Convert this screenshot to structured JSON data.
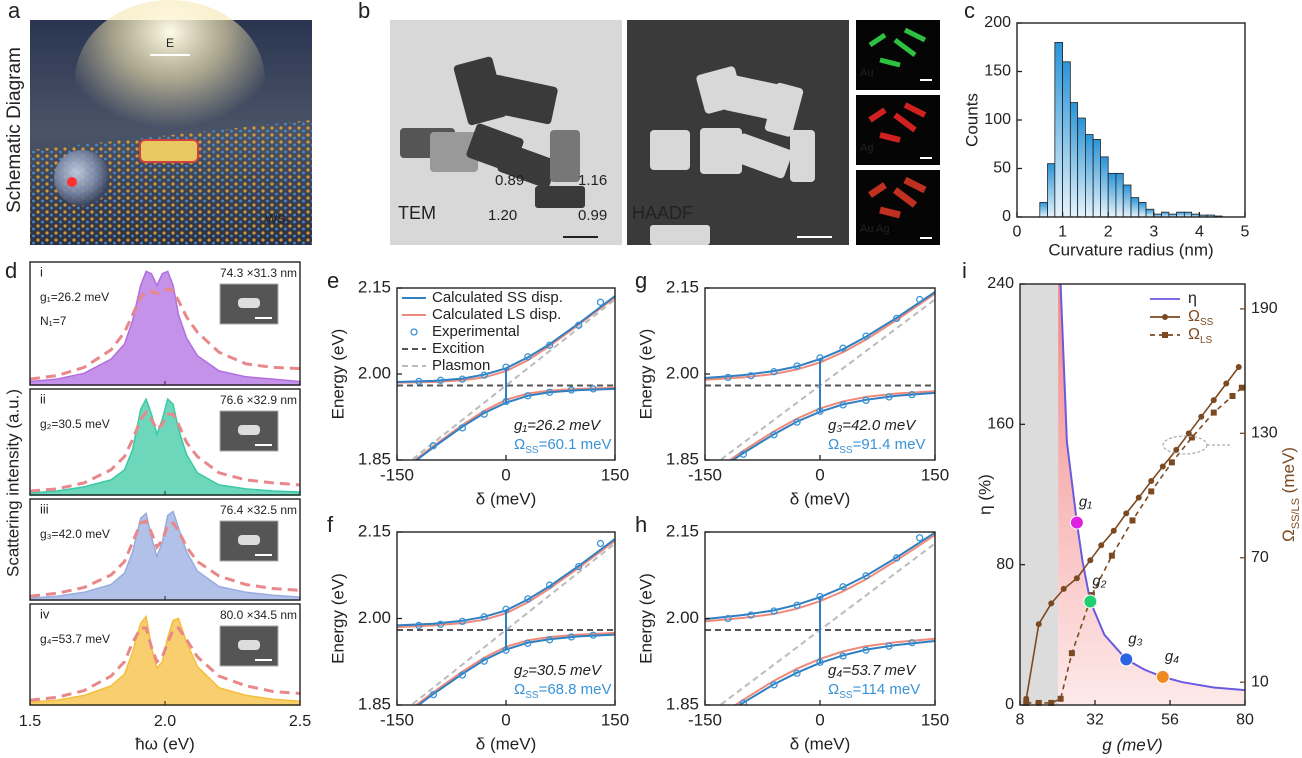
{
  "panels": {
    "a": {
      "letter": "a",
      "title": "Schematic Diagram",
      "field": "E",
      "substrate": "WS₂"
    },
    "b": {
      "letter": "b",
      "tem": "TEM",
      "haadf": "HAADF",
      "ratios": [
        "0.89",
        "1.16",
        "1.20",
        "0.99"
      ],
      "maps": [
        "Au",
        "Ag",
        "Au",
        "Ag"
      ]
    }
  },
  "chart_data": [
    {
      "panel": "c",
      "type": "histogram",
      "xlabel": "Curvature radius (nm)",
      "ylabel": "Counts",
      "color": "#3aa0d8",
      "bins": [
        0.5,
        0.67,
        0.83,
        1.0,
        1.17,
        1.33,
        1.5,
        1.67,
        1.83,
        2.0,
        2.17,
        2.33,
        2.5,
        2.67,
        2.83,
        3.0,
        3.17,
        3.33,
        3.5,
        3.67,
        3.83,
        4.0,
        4.17,
        4.33,
        4.5
      ],
      "values": [
        15,
        55,
        180,
        160,
        118,
        102,
        85,
        80,
        62,
        45,
        45,
        33,
        20,
        15,
        8,
        3,
        5,
        3,
        5,
        5,
        3,
        2,
        2,
        1
      ],
      "xlim": [
        0,
        5
      ],
      "xticks": [
        0,
        1,
        2,
        3,
        4,
        5
      ],
      "ylim": [
        0,
        200
      ],
      "yticks": [
        0,
        50,
        100,
        150,
        200
      ]
    },
    {
      "panel": "d",
      "type": "area",
      "xlabel": "ħω (eV)",
      "ylabel": "Scattering intensity (a.u.)",
      "fit_color": "#e8888a",
      "xlim": [
        1.5,
        2.5
      ],
      "xticks": [
        1.5,
        {
          "value": 2,
          "label": "2.0"
        },
        2.5
      ],
      "ylim": [
        0,
        1.05
      ],
      "x": [
        1.5,
        1.6,
        1.7,
        1.8,
        1.85,
        1.88,
        1.91,
        1.93,
        1.95,
        1.97,
        1.99,
        2.01,
        2.03,
        2.05,
        2.08,
        2.12,
        2.2,
        2.3,
        2.4,
        2.5
      ],
      "subplots": [
        {
          "index": "i",
          "size": "74.3 ×31.3 nm",
          "coupling": "g₁=26.2 meV",
          "count": "N₁=7",
          "color": "#b06ee0",
          "values": [
            0.03,
            0.05,
            0.1,
            0.22,
            0.35,
            0.55,
            0.85,
            0.97,
            0.95,
            0.85,
            0.95,
            0.97,
            0.85,
            0.6,
            0.4,
            0.25,
            0.12,
            0.07,
            0.05,
            0.03
          ],
          "fit": [
            0.05,
            0.08,
            0.15,
            0.3,
            0.45,
            0.6,
            0.75,
            0.8,
            0.8,
            0.78,
            0.8,
            0.82,
            0.8,
            0.72,
            0.58,
            0.45,
            0.28,
            0.18,
            0.15,
            0.14
          ]
        },
        {
          "index": "ii",
          "size": "76.6 ×32.9 nm",
          "coupling": "g₂=30.5 meV",
          "color": "#3cc9a6",
          "values": [
            0.02,
            0.04,
            0.08,
            0.15,
            0.25,
            0.45,
            0.85,
            0.95,
            0.8,
            0.6,
            0.75,
            0.95,
            0.9,
            0.65,
            0.4,
            0.22,
            0.1,
            0.06,
            0.04,
            0.03
          ],
          "fit": [
            0.04,
            0.06,
            0.12,
            0.25,
            0.38,
            0.55,
            0.75,
            0.82,
            0.75,
            0.65,
            0.7,
            0.8,
            0.8,
            0.7,
            0.52,
            0.38,
            0.22,
            0.15,
            0.12,
            0.1
          ]
        },
        {
          "index": "iii",
          "size": "76.4 ×32.5 nm",
          "coupling": "g₃=42.0 meV",
          "color": "#98acdf",
          "values": [
            0.02,
            0.04,
            0.08,
            0.16,
            0.28,
            0.5,
            0.85,
            0.9,
            0.65,
            0.45,
            0.6,
            0.88,
            0.92,
            0.75,
            0.5,
            0.3,
            0.14,
            0.08,
            0.05,
            0.03
          ],
          "fit": [
            0.04,
            0.07,
            0.13,
            0.26,
            0.4,
            0.6,
            0.8,
            0.82,
            0.7,
            0.55,
            0.62,
            0.78,
            0.8,
            0.72,
            0.55,
            0.4,
            0.25,
            0.16,
            0.12,
            0.1
          ]
        },
        {
          "index": "iv",
          "size": "80.0 ×34.5 nm",
          "coupling": "g₄=53.7 meV",
          "color": "#f5be3e",
          "values": [
            0.03,
            0.05,
            0.1,
            0.2,
            0.32,
            0.55,
            0.85,
            0.92,
            0.6,
            0.38,
            0.45,
            0.7,
            0.88,
            0.9,
            0.65,
            0.4,
            0.18,
            0.1,
            0.06,
            0.04
          ],
          "fit": [
            0.05,
            0.08,
            0.15,
            0.3,
            0.45,
            0.65,
            0.8,
            0.8,
            0.6,
            0.45,
            0.5,
            0.65,
            0.78,
            0.8,
            0.68,
            0.5,
            0.3,
            0.2,
            0.14,
            0.12
          ]
        }
      ]
    },
    {
      "panel": "e",
      "type": "line",
      "xlabel": "δ (meV)",
      "ylabel": "Energy (eV)",
      "xlim": [
        -150,
        150
      ],
      "xticks": [
        -150,
        0,
        150
      ],
      "ylim": [
        1.85,
        2.15
      ],
      "yticks": [
        1.85,
        {
          "value": 2,
          "label": "2.00"
        },
        2.15
      ],
      "x": [
        -150,
        -100,
        -60,
        -30,
        0,
        30,
        60,
        100,
        150
      ],
      "coupling": "g₁=26.2 meV",
      "splitting": [
        "Ω",
        "SS",
        "=60.1 meV"
      ],
      "series": [
        {
          "name": "Calculated SS disp.",
          "color": "#2f7fc1",
          "values": [
            1.986,
            1.988,
            1.992,
            1.999,
            2.01,
            2.029,
            2.052,
            2.088,
            2.136
          ],
          "lower": [
            1.824,
            1.872,
            1.908,
            1.932,
            1.95,
            1.962,
            1.968,
            1.972,
            1.974
          ]
        },
        {
          "name": "Calculated LS disp.",
          "color": "#ef8a7a",
          "values": [
            1.985,
            1.986,
            1.989,
            1.994,
            2.005,
            2.024,
            2.049,
            2.086,
            2.134
          ],
          "lower": [
            1.826,
            1.874,
            1.911,
            1.936,
            1.955,
            1.966,
            1.971,
            1.974,
            1.976
          ]
        },
        {
          "name": "Experimental",
          "color": "#3a93d6",
          "x": [
            -120,
            -90,
            -60,
            -30,
            0,
            30,
            60,
            100,
            130,
            -100,
            -60,
            -30,
            0,
            30,
            60,
            90,
            120
          ],
          "values": [
            1.987,
            1.989,
            1.991,
            1.998,
            2.012,
            2.03,
            2.05,
            2.085,
            2.125,
            1.875,
            1.906,
            1.93,
            1.952,
            1.962,
            1.968,
            1.972,
            1.974
          ]
        },
        {
          "name": "Excition",
          "color": "#555555",
          "x": [
            -150,
            150
          ],
          "values": [
            1.98,
            1.98
          ]
        },
        {
          "name": "Plasmon",
          "color": "#bbbbbb",
          "x": [
            -150,
            150
          ],
          "values": [
            1.83,
            2.13
          ]
        }
      ]
    },
    {
      "panel": "f",
      "type": "line",
      "xlabel": "δ (meV)",
      "ylabel": "Energy (eV)",
      "xlim": [
        -150,
        150
      ],
      "xticks": [
        -150,
        0,
        150
      ],
      "ylim": [
        1.85,
        2.15
      ],
      "yticks": [
        1.85,
        {
          "value": 2,
          "label": "2.00"
        },
        2.15
      ],
      "x": [
        -150,
        -100,
        -60,
        -30,
        0,
        30,
        60,
        100,
        150
      ],
      "coupling": "g₂=30.5 meV",
      "splitting": [
        "Ω",
        "SS",
        "=68.8 meV"
      ],
      "series": [
        {
          "color": "#2f7fc1",
          "values": [
            1.988,
            1.991,
            1.996,
            2.003,
            2.014,
            2.033,
            2.056,
            2.091,
            2.138
          ],
          "lower": [
            1.822,
            1.869,
            1.904,
            1.928,
            1.946,
            1.958,
            1.964,
            1.969,
            1.972
          ]
        },
        {
          "color": "#ef8a7a",
          "values": [
            1.985,
            1.988,
            1.992,
            1.998,
            2.009,
            2.028,
            2.052,
            2.088,
            2.135
          ],
          "lower": [
            1.825,
            1.872,
            1.908,
            1.932,
            1.951,
            1.962,
            1.968,
            1.972,
            1.975
          ]
        },
        {
          "color": "#3a93d6",
          "x": [
            -120,
            -90,
            -60,
            -30,
            0,
            30,
            60,
            100,
            130,
            -100,
            -60,
            -30,
            0,
            30,
            60,
            90,
            120
          ],
          "values": [
            1.988,
            1.99,
            1.995,
            2.003,
            2.016,
            2.034,
            2.058,
            2.09,
            2.13,
            1.868,
            1.902,
            1.926,
            1.945,
            1.957,
            1.963,
            1.968,
            1.971
          ]
        },
        {
          "color": "#555555",
          "x": [
            -150,
            150
          ],
          "values": [
            1.98,
            1.98
          ]
        },
        {
          "color": "#bbbbbb",
          "x": [
            -150,
            150
          ],
          "values": [
            1.83,
            2.13
          ]
        }
      ]
    },
    {
      "panel": "g",
      "type": "line",
      "xlabel": "δ (meV)",
      "ylabel": "Energy (eV)",
      "xlim": [
        -150,
        150
      ],
      "xticks": [
        -150,
        0,
        150
      ],
      "ylim": [
        1.85,
        2.15
      ],
      "yticks": [
        1.85,
        {
          "value": 2,
          "label": "2.00"
        },
        2.15
      ],
      "x": [
        -150,
        -100,
        -60,
        -30,
        0,
        30,
        60,
        100,
        150
      ],
      "coupling": "g₃=42.0 meV",
      "splitting": [
        "Ω",
        "SS",
        "=91.4 meV"
      ],
      "series": [
        {
          "color": "#2f7fc1",
          "values": [
            1.993,
            1.998,
            2.005,
            2.013,
            2.026,
            2.043,
            2.065,
            2.098,
            2.143
          ],
          "lower": [
            1.817,
            1.862,
            1.895,
            1.917,
            1.934,
            1.947,
            1.955,
            1.962,
            1.967
          ]
        },
        {
          "color": "#ef8a7a",
          "values": [
            1.99,
            1.994,
            2.0,
            2.008,
            2.02,
            2.038,
            2.06,
            2.094,
            2.14
          ],
          "lower": [
            1.82,
            1.866,
            1.9,
            1.922,
            1.94,
            1.952,
            1.96,
            1.966,
            1.97
          ]
        },
        {
          "color": "#3a93d6",
          "x": [
            -120,
            -90,
            -60,
            -30,
            0,
            30,
            60,
            100,
            130,
            -100,
            -60,
            -30,
            0,
            30,
            60,
            90,
            120
          ],
          "values": [
            1.994,
            1.997,
            2.004,
            2.014,
            2.028,
            2.045,
            2.066,
            2.097,
            2.13,
            1.86,
            1.894,
            1.916,
            1.935,
            1.946,
            1.954,
            1.96,
            1.964
          ]
        },
        {
          "color": "#555555",
          "x": [
            -150,
            150
          ],
          "values": [
            1.98,
            1.98
          ]
        },
        {
          "color": "#bbbbbb",
          "x": [
            -150,
            150
          ],
          "values": [
            1.83,
            2.13
          ]
        }
      ]
    },
    {
      "panel": "h",
      "type": "line",
      "xlabel": "δ (meV)",
      "ylabel": "Energy (eV)",
      "xlim": [
        -150,
        150
      ],
      "xticks": [
        -150,
        0,
        150
      ],
      "ylim": [
        1.85,
        2.15
      ],
      "yticks": [
        1.85,
        {
          "value": 2,
          "label": "2.00"
        },
        2.15
      ],
      "x": [
        -150,
        -100,
        -60,
        -30,
        0,
        30,
        60,
        100,
        150
      ],
      "coupling": "g₄=53.7 meV",
      "splitting": [
        "Ω",
        "SS",
        "=114 meV"
      ],
      "series": [
        {
          "color": "#2f7fc1",
          "values": [
            1.999,
            2.006,
            2.014,
            2.024,
            2.037,
            2.054,
            2.074,
            2.106,
            2.149
          ],
          "lower": [
            1.811,
            1.854,
            1.886,
            1.906,
            1.923,
            1.936,
            1.946,
            1.954,
            1.961
          ]
        },
        {
          "color": "#ef8a7a",
          "values": [
            1.995,
            2.001,
            2.008,
            2.017,
            2.03,
            2.047,
            2.068,
            2.101,
            2.145
          ],
          "lower": [
            1.815,
            1.859,
            1.892,
            1.913,
            1.93,
            1.943,
            1.952,
            1.959,
            1.965
          ]
        },
        {
          "color": "#3a93d6",
          "x": [
            -120,
            -90,
            -60,
            -30,
            0,
            30,
            60,
            100,
            130,
            -100,
            -60,
            -30,
            0,
            30,
            60,
            90,
            120
          ],
          "values": [
            2.0,
            2.006,
            2.013,
            2.023,
            2.038,
            2.055,
            2.074,
            2.105,
            2.14,
            1.853,
            1.885,
            1.905,
            1.924,
            1.935,
            1.945,
            1.952,
            1.958
          ]
        },
        {
          "color": "#555555",
          "x": [
            -150,
            150
          ],
          "values": [
            1.98,
            1.98
          ]
        },
        {
          "color": "#bbbbbb",
          "x": [
            -150,
            150
          ],
          "values": [
            1.83,
            2.13
          ]
        }
      ]
    },
    {
      "panel": "i",
      "type": "dual",
      "xlabel": "g (meV)",
      "ylabel": "η (%)",
      "y2label": [
        "Ω",
        "SS/LS",
        " (meV)"
      ],
      "xlim": [
        8,
        80
      ],
      "xticks": [
        8,
        32,
        56,
        80
      ],
      "ylim": [
        0,
        240
      ],
      "yticks": [
        0,
        80,
        160,
        240
      ],
      "y2lim": [
        -1,
        202
      ],
      "y2ticks": [
        10,
        70,
        130,
        190
      ],
      "shade_x": 20.2,
      "series": [
        {
          "name": "η",
          "color": "#6a5ae0",
          "x": [
            21,
            23,
            26.2,
            28,
            30.5,
            35,
            42,
            48,
            53.7,
            60,
            70,
            80
          ],
          "values": [
            240,
            150,
            104,
            82,
            59,
            40,
            26,
            20,
            16,
            13,
            10,
            8.5
          ]
        },
        {
          "name": "Ω",
          "sub": "SS",
          "color": "#7b4a22",
          "axis": "y2",
          "x": [
            10,
            14,
            18,
            22,
            26.2,
            30.5,
            34,
            38,
            42,
            46,
            50,
            53.7,
            58,
            62,
            66,
            70,
            74,
            78
          ],
          "values": [
            2,
            38,
            48,
            55,
            60.1,
            68.8,
            76,
            83,
            91.4,
            99,
            107,
            114,
            122,
            130,
            138,
            146,
            154,
            162
          ]
        },
        {
          "name": "Ω",
          "sub": "LS",
          "color": "#7b4a22",
          "axis": "y2",
          "x": [
            10,
            14,
            18,
            21,
            24.6,
            31,
            37.4,
            44,
            50,
            56.6,
            63,
            70,
            76,
            79
          ],
          "values": [
            0,
            0,
            0,
            2,
            24,
            52,
            71,
            88,
            102,
            116,
            128,
            140,
            148,
            152
          ]
        }
      ],
      "points": [
        {
          "label": "g₁",
          "x": 26.2,
          "y": 104,
          "color": "#e020e0"
        },
        {
          "label": "g₂",
          "x": 30.5,
          "y": 59,
          "color": "#20d070"
        },
        {
          "label": "g₃",
          "x": 42,
          "y": 26,
          "color": "#2a64e0"
        },
        {
          "label": "g₄",
          "x": 53.7,
          "y": 16,
          "color": "#f08a20"
        }
      ]
    }
  ]
}
